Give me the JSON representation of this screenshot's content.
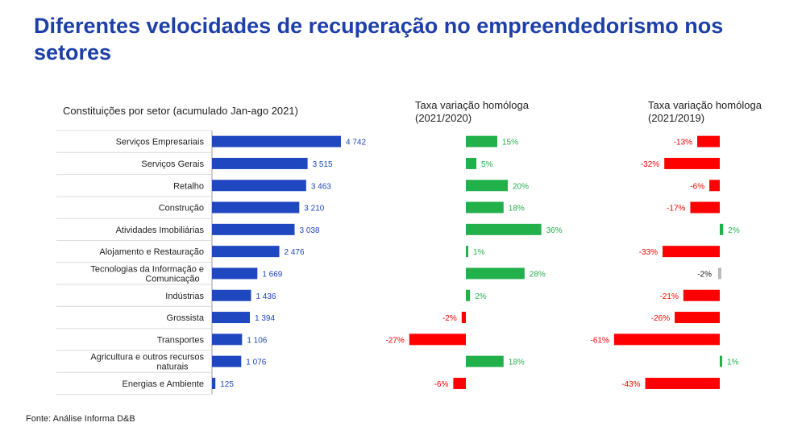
{
  "title": "Diferentes velocidades de recuperação no empreendedorismo nos setores",
  "source": "Fonte: Análise Informa  D&B",
  "colors": {
    "blue": "#1f47bf",
    "green": "#22b04b",
    "red": "#ff0000",
    "grey": "#bbbbbb",
    "title": "#1d3fa8",
    "divider": "#dcdcdc"
  },
  "chart_data": [
    {
      "type": "bar",
      "orientation": "horizontal",
      "title": "Constituições por setor (acumulado Jan-ago 2021)",
      "categories": [
        "Serviços Empresariais",
        "Serviços Gerais",
        "Retalho",
        "Construção",
        "Atividades Imobiliárias",
        "Alojamento e Restauração",
        "Tecnologias da Informação e Comunicação",
        "Indústrias",
        "Grossista",
        "Transportes",
        "Agricultura e outros recursos naturais",
        "Energias e Ambiente"
      ],
      "values": [
        4742,
        3515,
        3463,
        3210,
        3038,
        2476,
        1669,
        1436,
        1394,
        1106,
        1076,
        125
      ],
      "value_labels": [
        "4 742",
        "3 515",
        "3 463",
        "3 210",
        "3 038",
        "2 476",
        "1 669",
        "1 436",
        "1 394",
        "1 106",
        "1 076",
        "125"
      ]
    },
    {
      "type": "bar",
      "orientation": "horizontal",
      "title": "Taxa variação homóloga (2021/2020)",
      "values": [
        15,
        5,
        20,
        18,
        36,
        1,
        28,
        2,
        -2,
        -27,
        18,
        -6
      ],
      "value_labels": [
        "15%",
        "5%",
        "20%",
        "18%",
        "36%",
        "1%",
        "28%",
        "2%",
        "-2%",
        "-27%",
        "18%",
        "-6%"
      ]
    },
    {
      "type": "bar",
      "orientation": "horizontal",
      "title": "Taxa variação homóloga (2021/2019)",
      "values": [
        -13,
        -32,
        -6,
        -17,
        2,
        -33,
        -2,
        -21,
        -26,
        -61,
        1,
        -43
      ],
      "value_labels": [
        "-13%",
        "-32%",
        "-6%",
        "-17%",
        "2%",
        "-33%",
        "-2%",
        "-21%",
        "-26%",
        "-61%",
        "1%",
        "-43%"
      ],
      "neutral_index": 6
    }
  ]
}
